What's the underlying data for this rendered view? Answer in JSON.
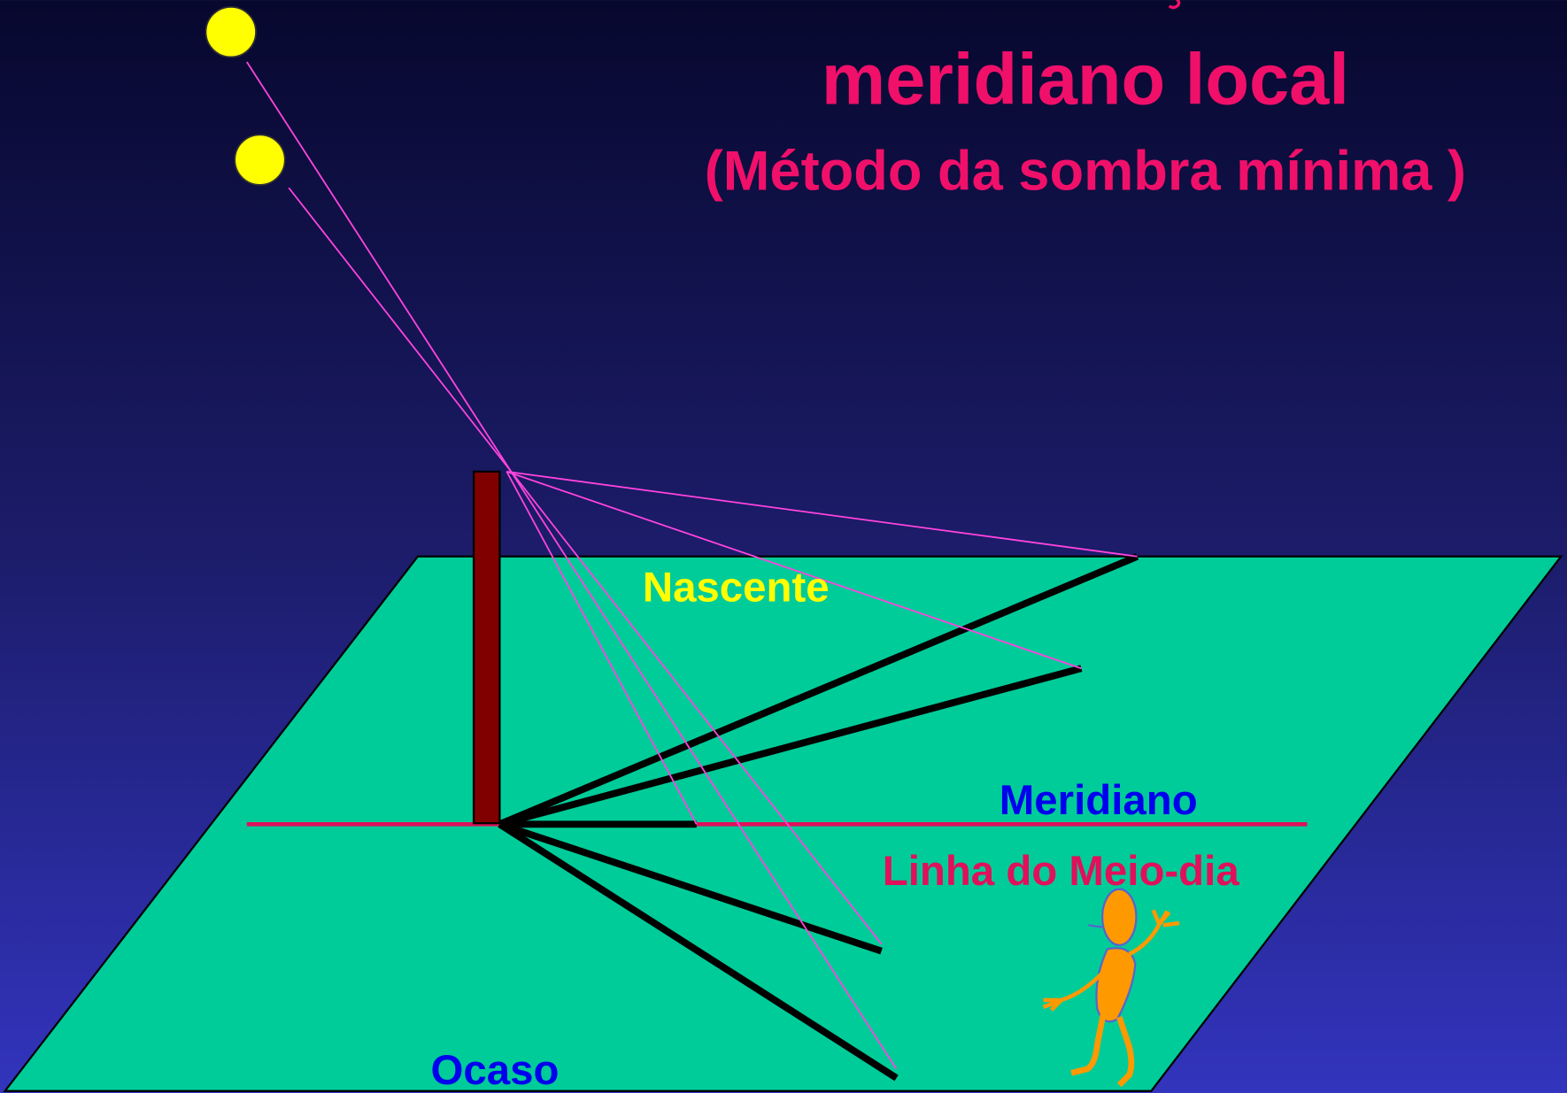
{
  "header": {
    "title": "meridiano local",
    "subtitle": "(Método da sombra mínima )"
  },
  "labels": {
    "sunrise": "Nascente",
    "meridian": "Meridiano",
    "noon_line": "Linha do Meio-dia",
    "sunset": "Ocaso"
  }
}
